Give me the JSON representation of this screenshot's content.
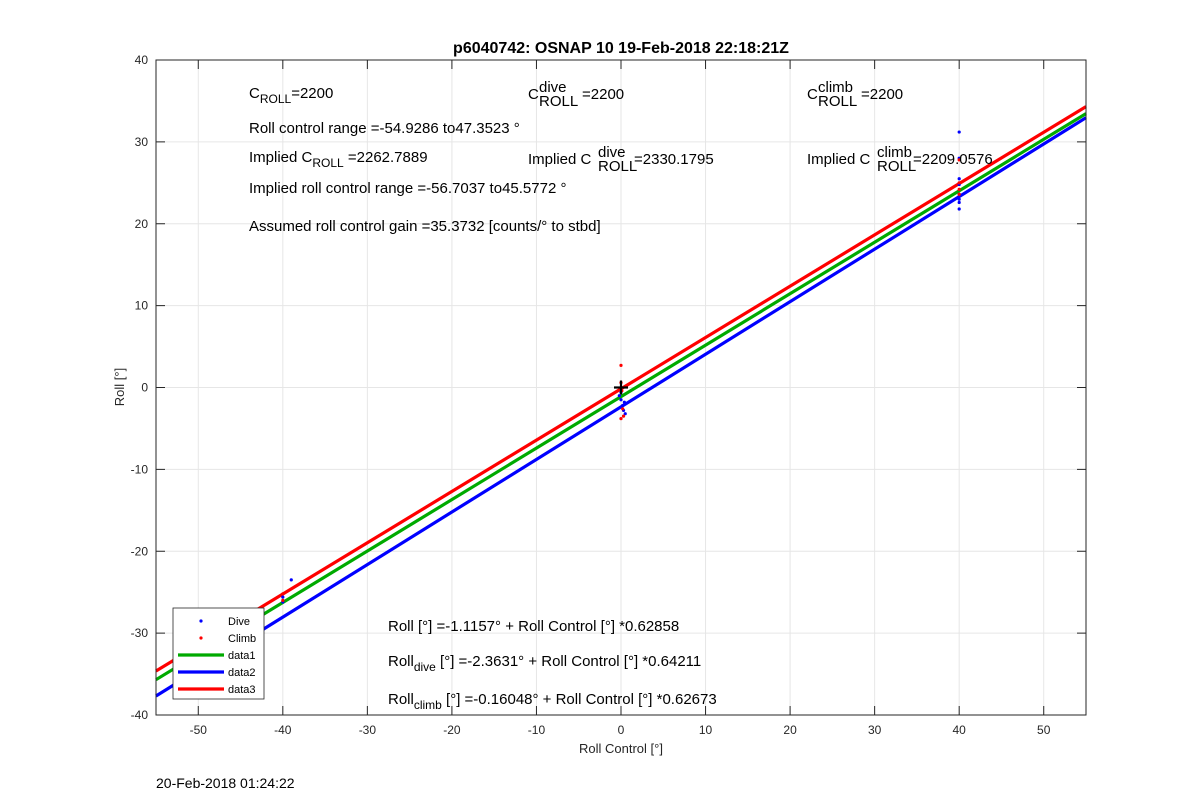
{
  "chart_data": {
    "type": "scatter",
    "title": "p6040742: OSNAP 10 19-Feb-2018 22:18:21Z",
    "xlabel": "Roll Control [°]",
    "ylabel": "Roll [°]",
    "xlim": [
      -55,
      55
    ],
    "ylim": [
      -40,
      40
    ],
    "xticks": [
      -50,
      -40,
      -30,
      -20,
      -10,
      0,
      10,
      20,
      30,
      40,
      50
    ],
    "yticks": [
      -40,
      -30,
      -20,
      -10,
      0,
      10,
      20,
      30,
      40
    ],
    "grid": true,
    "legend_position": "bottom-left",
    "series": [
      {
        "name": "Dive",
        "kind": "points",
        "color": "#0000ff",
        "points": [
          [
            -39,
            -23.5
          ],
          [
            -40,
            -25.6
          ],
          [
            -40,
            -26.2
          ],
          [
            0,
            -0.6
          ],
          [
            0,
            -1.5
          ],
          [
            0.2,
            -2.2
          ],
          [
            0.3,
            -2.8
          ],
          [
            0.5,
            -3.2
          ],
          [
            -0.2,
            -1.0
          ],
          [
            0.4,
            -1.8
          ],
          [
            40,
            31.2
          ],
          [
            40,
            28.0
          ],
          [
            40,
            25.5
          ],
          [
            40,
            24.8
          ],
          [
            40,
            23.6
          ],
          [
            40,
            22.6
          ],
          [
            40,
            21.8
          ],
          [
            40,
            23.0
          ]
        ]
      },
      {
        "name": "Climb",
        "kind": "points",
        "color": "#ff0000",
        "points": [
          [
            -40,
            -25.2
          ],
          [
            -40,
            -26.0
          ],
          [
            0,
            2.7
          ],
          [
            0,
            0.6
          ],
          [
            0.1,
            -0.4
          ],
          [
            0.2,
            -2.6
          ],
          [
            0,
            -3.8
          ],
          [
            0.3,
            -3.5
          ],
          [
            40,
            27.8
          ],
          [
            40,
            25.0
          ],
          [
            40,
            24.2
          ],
          [
            40,
            23.6
          ]
        ]
      },
      {
        "name": "data1",
        "kind": "line",
        "color": "#00aa00",
        "intercept": -1.1157,
        "slope": 0.62858
      },
      {
        "name": "data2",
        "kind": "line",
        "color": "#0000ff",
        "intercept": -2.3631,
        "slope": 0.64211
      },
      {
        "name": "data3",
        "kind": "line",
        "color": "#ff0000",
        "intercept": -0.16048,
        "slope": 0.62673
      }
    ],
    "marker": {
      "symbol": "+",
      "x": 0,
      "y": 0,
      "color": "#000000"
    },
    "annotations": {
      "c_roll_pre": "C",
      "c_roll_sub": "ROLL",
      "c_roll_val": "=2200",
      "c_dive_pre": "C",
      "c_dive_sup": "dive",
      "c_dive_sub": "ROLL",
      "c_dive_val": "=2200",
      "c_climb_pre": "C",
      "c_climb_sup": "climb",
      "c_climb_sub": "ROLL",
      "c_climb_val": "=2200",
      "range": "Roll control range =-54.9286 to47.3523 °",
      "implied_pre": "Implied C",
      "implied_sub": "ROLL",
      "implied_val": " =2262.7889",
      "implied_dive_pre": "Implied C",
      "implied_dive_sup": "dive",
      "implied_dive_sub": "ROLL",
      "implied_dive_val": " =2330.1795",
      "implied_climb_pre": "Implied C",
      "implied_climb_sup": "climb",
      "implied_climb_sub": "ROLL",
      "implied_climb_val": " =2209.0576",
      "implied_range": "Implied roll control range =-56.7037 to45.5772 °",
      "gain": "Assumed roll control gain =35.3732 [counts/° to stbd]",
      "fit_all": "Roll [°] =-1.1157° + Roll Control [°] *0.62858",
      "fit_dive_pre": "Roll",
      "fit_dive_sub": "dive",
      "fit_dive_val": " [°] =-2.3631° + Roll Control [°] *0.64211",
      "fit_climb_pre": "Roll",
      "fit_climb_sub": "climb",
      "fit_climb_val": " [°] =-0.16048° + Roll Control [°] *0.62673"
    }
  },
  "footer_timestamp": "20-Feb-2018 01:24:22"
}
